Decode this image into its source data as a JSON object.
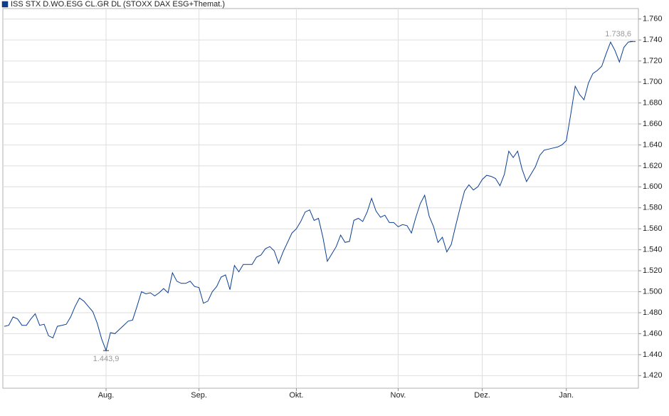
{
  "chart_data": {
    "type": "line",
    "categories": [
      null,
      null,
      null,
      null,
      null,
      null,
      null,
      null,
      null,
      null,
      null,
      null,
      null,
      null,
      null,
      null,
      null,
      null,
      null,
      null,
      null,
      null,
      null,
      "Aug.",
      null,
      null,
      null,
      null,
      null,
      null,
      null,
      null,
      null,
      null,
      null,
      null,
      null,
      null,
      null,
      null,
      null,
      null,
      null,
      null,
      "Sep.",
      null,
      null,
      null,
      null,
      null,
      null,
      null,
      null,
      null,
      null,
      null,
      null,
      null,
      null,
      null,
      null,
      null,
      null,
      null,
      null,
      null,
      "Okt.",
      null,
      null,
      null,
      null,
      null,
      null,
      null,
      null,
      null,
      null,
      null,
      null,
      null,
      null,
      null,
      null,
      null,
      null,
      null,
      null,
      null,
      null,
      "Nov.",
      null,
      null,
      null,
      null,
      null,
      null,
      null,
      null,
      null,
      null,
      null,
      null,
      null,
      null,
      null,
      null,
      null,
      null,
      "Dez.",
      null,
      null,
      null,
      null,
      null,
      null,
      null,
      null,
      null,
      null,
      null,
      null,
      null,
      null,
      null,
      null,
      null,
      null,
      "Jan.",
      null,
      null,
      null,
      null,
      null,
      null,
      null,
      null,
      null,
      null,
      null,
      null,
      null,
      null,
      null
    ],
    "series": [
      {
        "name": "ISS STX D.WO.ESG CL.GR DL (STOXX DAX ESG+Themat.)",
        "color": "#0b3f94",
        "values": [
          1467,
          1468,
          1476,
          1474,
          1468,
          1468,
          1474,
          1479,
          1468,
          1469,
          1458,
          1456,
          1467,
          1468,
          1469,
          1476,
          1486,
          1494,
          1491,
          1486,
          1481,
          1470,
          1455,
          1443.9,
          1461,
          1460,
          1464,
          1468,
          1472,
          1473,
          1486,
          1500,
          1498,
          1499,
          1496,
          1499,
          1503,
          1499,
          1518,
          1510,
          1508,
          1508,
          1510,
          1505,
          1504,
          1489,
          1491,
          1500,
          1505,
          1514,
          1516,
          1502,
          1525,
          1519,
          1526,
          1526,
          1526,
          1533,
          1535,
          1541,
          1543,
          1539,
          1527,
          1538,
          1547,
          1556,
          1560,
          1567,
          1576,
          1578,
          1568,
          1570,
          1552,
          1529,
          1536,
          1543,
          1554,
          1547,
          1548,
          1568,
          1570,
          1567,
          1576,
          1589,
          1577,
          1571,
          1573,
          1566,
          1566,
          1562,
          1564,
          1563,
          1556,
          1571,
          1584,
          1592,
          1572,
          1562,
          1547,
          1552,
          1538,
          1545,
          1563,
          1580,
          1596,
          1602,
          1597,
          1600,
          1607,
          1611,
          1610,
          1608,
          1601,
          1612,
          1634,
          1628,
          1634,
          1617,
          1605,
          1612,
          1619,
          1630,
          1635,
          1636,
          1637,
          1638,
          1640,
          1644,
          1669,
          1696,
          1688,
          1683,
          1699,
          1708,
          1711,
          1715,
          1727,
          1738,
          1730,
          1719,
          1733,
          1738,
          1738.6
        ],
        "value_labels": [
          null,
          null,
          null,
          null,
          null,
          null,
          null,
          null,
          null,
          null,
          null,
          null,
          null,
          null,
          null,
          null,
          null,
          null,
          null,
          null,
          null,
          null,
          null,
          "1.443,9",
          null,
          null,
          null,
          null,
          null,
          null,
          null,
          null,
          null,
          null,
          null,
          null,
          null,
          null,
          null,
          null,
          null,
          null,
          null,
          null,
          null,
          null,
          null,
          null,
          null,
          null,
          null,
          null,
          null,
          null,
          null,
          null,
          null,
          null,
          null,
          null,
          null,
          null,
          null,
          null,
          null,
          null,
          null,
          null,
          null,
          null,
          null,
          null,
          null,
          null,
          null,
          null,
          null,
          null,
          null,
          null,
          null,
          null,
          null,
          null,
          null,
          null,
          null,
          null,
          null,
          null,
          null,
          null,
          null,
          null,
          null,
          null,
          null,
          null,
          null,
          null,
          null,
          null,
          null,
          null,
          null,
          null,
          null,
          null,
          null,
          null,
          null,
          null,
          null,
          null,
          null,
          null,
          null,
          null,
          null,
          null,
          null,
          null,
          null,
          null,
          null,
          null,
          null,
          null,
          null,
          null,
          null,
          null,
          null,
          null,
          null,
          null,
          null,
          null,
          null,
          null,
          null,
          null,
          "1.738,6"
        ]
      }
    ],
    "ylim": [
      1408,
      1770
    ],
    "yticks": [
      {
        "value": 1420,
        "label": "1.420"
      },
      {
        "value": 1440,
        "label": "1.440"
      },
      {
        "value": 1460,
        "label": "1.460"
      },
      {
        "value": 1480,
        "label": "1.480"
      },
      {
        "value": 1500,
        "label": "1.500"
      },
      {
        "value": 1520,
        "label": "1.520"
      },
      {
        "value": 1540,
        "label": "1.540"
      },
      {
        "value": 1560,
        "label": "1.560"
      },
      {
        "value": 1580,
        "label": "1.580"
      },
      {
        "value": 1600,
        "label": "1.600"
      },
      {
        "value": 1620,
        "label": "1.620"
      },
      {
        "value": 1640,
        "label": "1.640"
      },
      {
        "value": 1660,
        "label": "1.660"
      },
      {
        "value": 1680,
        "label": "1.680"
      },
      {
        "value": 1700,
        "label": "1.700"
      },
      {
        "value": 1720,
        "label": "1.720"
      },
      {
        "value": 1740,
        "label": "1.740"
      },
      {
        "value": 1760,
        "label": "1.760"
      }
    ],
    "grid": true,
    "legend": "top-left"
  }
}
